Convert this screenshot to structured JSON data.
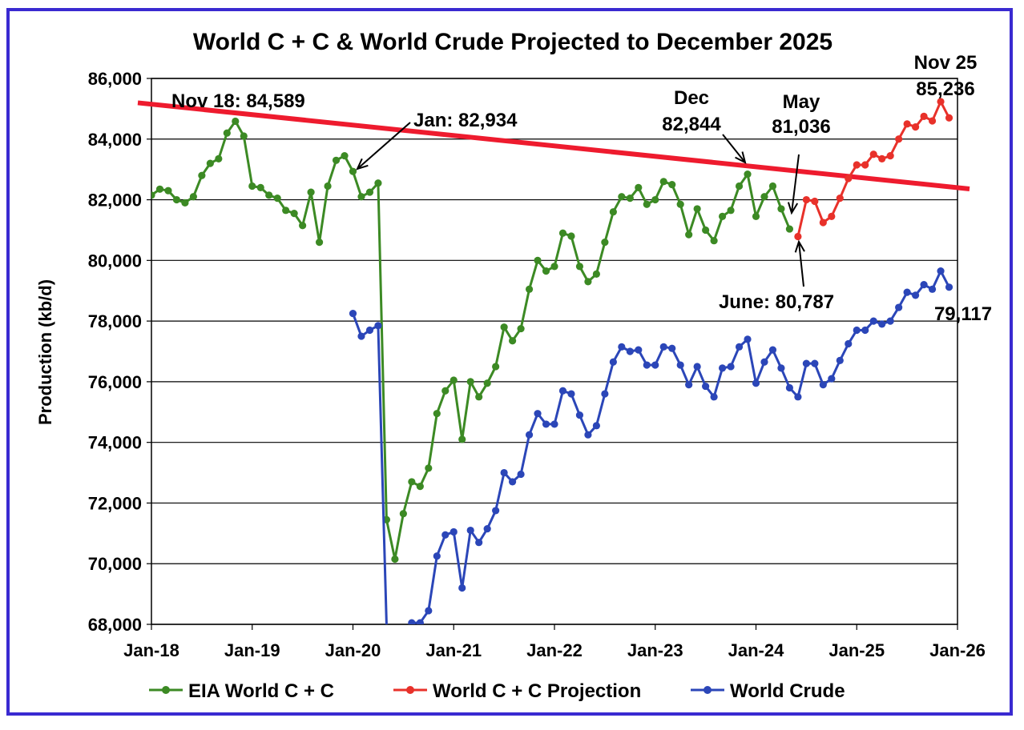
{
  "chart_data": {
    "type": "line",
    "title": "World C + C & World Crude Projected to December 2025",
    "ylabel": "Production (kb/d)",
    "xlabel": "",
    "ylim": [
      68000,
      86000
    ],
    "yticks": [
      68000,
      70000,
      72000,
      74000,
      76000,
      78000,
      80000,
      82000,
      84000,
      86000
    ],
    "ytick_labels": [
      "68,000",
      "70,000",
      "72,000",
      "74,000",
      "76,000",
      "78,000",
      "80,000",
      "82,000",
      "84,000",
      "86,000"
    ],
    "x_start": "2018-01",
    "x_end": "2026-01",
    "xtick_labels": [
      "Jan-18",
      "Jan-19",
      "Jan-20",
      "Jan-21",
      "Jan-22",
      "Jan-23",
      "Jan-24",
      "Jan-25",
      "Jan-26"
    ],
    "grid": "horizontal",
    "legend_position": "bottom",
    "series": [
      {
        "name": "EIA World  C + C",
        "color": "#3c8a24",
        "start": "2018-01",
        "values": [
          82150,
          82350,
          82300,
          82000,
          81900,
          82100,
          82800,
          83200,
          83350,
          84200,
          84589,
          84100,
          82450,
          82400,
          82150,
          82050,
          81650,
          81550,
          81150,
          82250,
          80600,
          82450,
          83300,
          83450,
          82934,
          82100,
          82250,
          82550,
          71450,
          70150,
          71650,
          72700,
          72550,
          73150,
          74950,
          75700,
          76050,
          74100,
          76000,
          75500,
          75950,
          76500,
          77800,
          77350,
          77750,
          79050,
          80000,
          79650,
          79800,
          80900,
          80800,
          79800,
          79300,
          79550,
          80600,
          81600,
          82100,
          82050,
          82400,
          81850,
          82000,
          82600,
          82500,
          81850,
          80850,
          81700,
          81000,
          80650,
          81450,
          81650,
          82450,
          82844,
          81450,
          82100,
          82450,
          81700,
          81036
        ]
      },
      {
        "name": "World C + C Projection",
        "color": "#e8312a",
        "start": "2024-06",
        "values": [
          80787,
          82000,
          81950,
          81250,
          81450,
          82050,
          82700,
          83150,
          83150,
          83500,
          83350,
          83450,
          84000,
          84500,
          84400,
          84750,
          84600,
          85236,
          84700
        ]
      },
      {
        "name": "World Crude",
        "color": "#2b46b8",
        "start": "2020-01",
        "values": [
          78250,
          77500,
          77700,
          77850,
          68000,
          null,
          null,
          68050,
          68050,
          68450,
          70250,
          70950,
          71050,
          69200,
          71100,
          70700,
          71150,
          71750,
          73000,
          72700,
          72950,
          74250,
          74950,
          74600,
          74600,
          75700,
          75600,
          74900,
          74250,
          74550,
          75600,
          76650,
          77150,
          77000,
          77050,
          76550,
          76550,
          77150,
          77100,
          76550,
          75900,
          76500,
          75850,
          75500,
          76450,
          76500,
          77150,
          77400,
          75950,
          76650,
          77050,
          76450,
          75800,
          75500,
          76600,
          76600,
          75900,
          76100,
          76700,
          77250,
          77700,
          77700,
          78000,
          77900,
          78000,
          78450,
          78950,
          78850,
          79200,
          79050,
          79650,
          79117
        ]
      }
    ],
    "trendline": {
      "color": "#ee1b2e",
      "start_x": "2018-01",
      "start_y": 85150,
      "end_x": "2026-01",
      "end_y": 82400
    },
    "annotations": [
      {
        "text": "Nov 18: 84,589"
      },
      {
        "text": "Jan: 82,934"
      },
      {
        "text": "Dec"
      },
      {
        "text": "82,844"
      },
      {
        "text": "May"
      },
      {
        "text": "81,036"
      },
      {
        "text": "Nov 25"
      },
      {
        "text": "85,236"
      },
      {
        "text": "June: 80,787"
      },
      {
        "text": "79,117"
      }
    ]
  }
}
